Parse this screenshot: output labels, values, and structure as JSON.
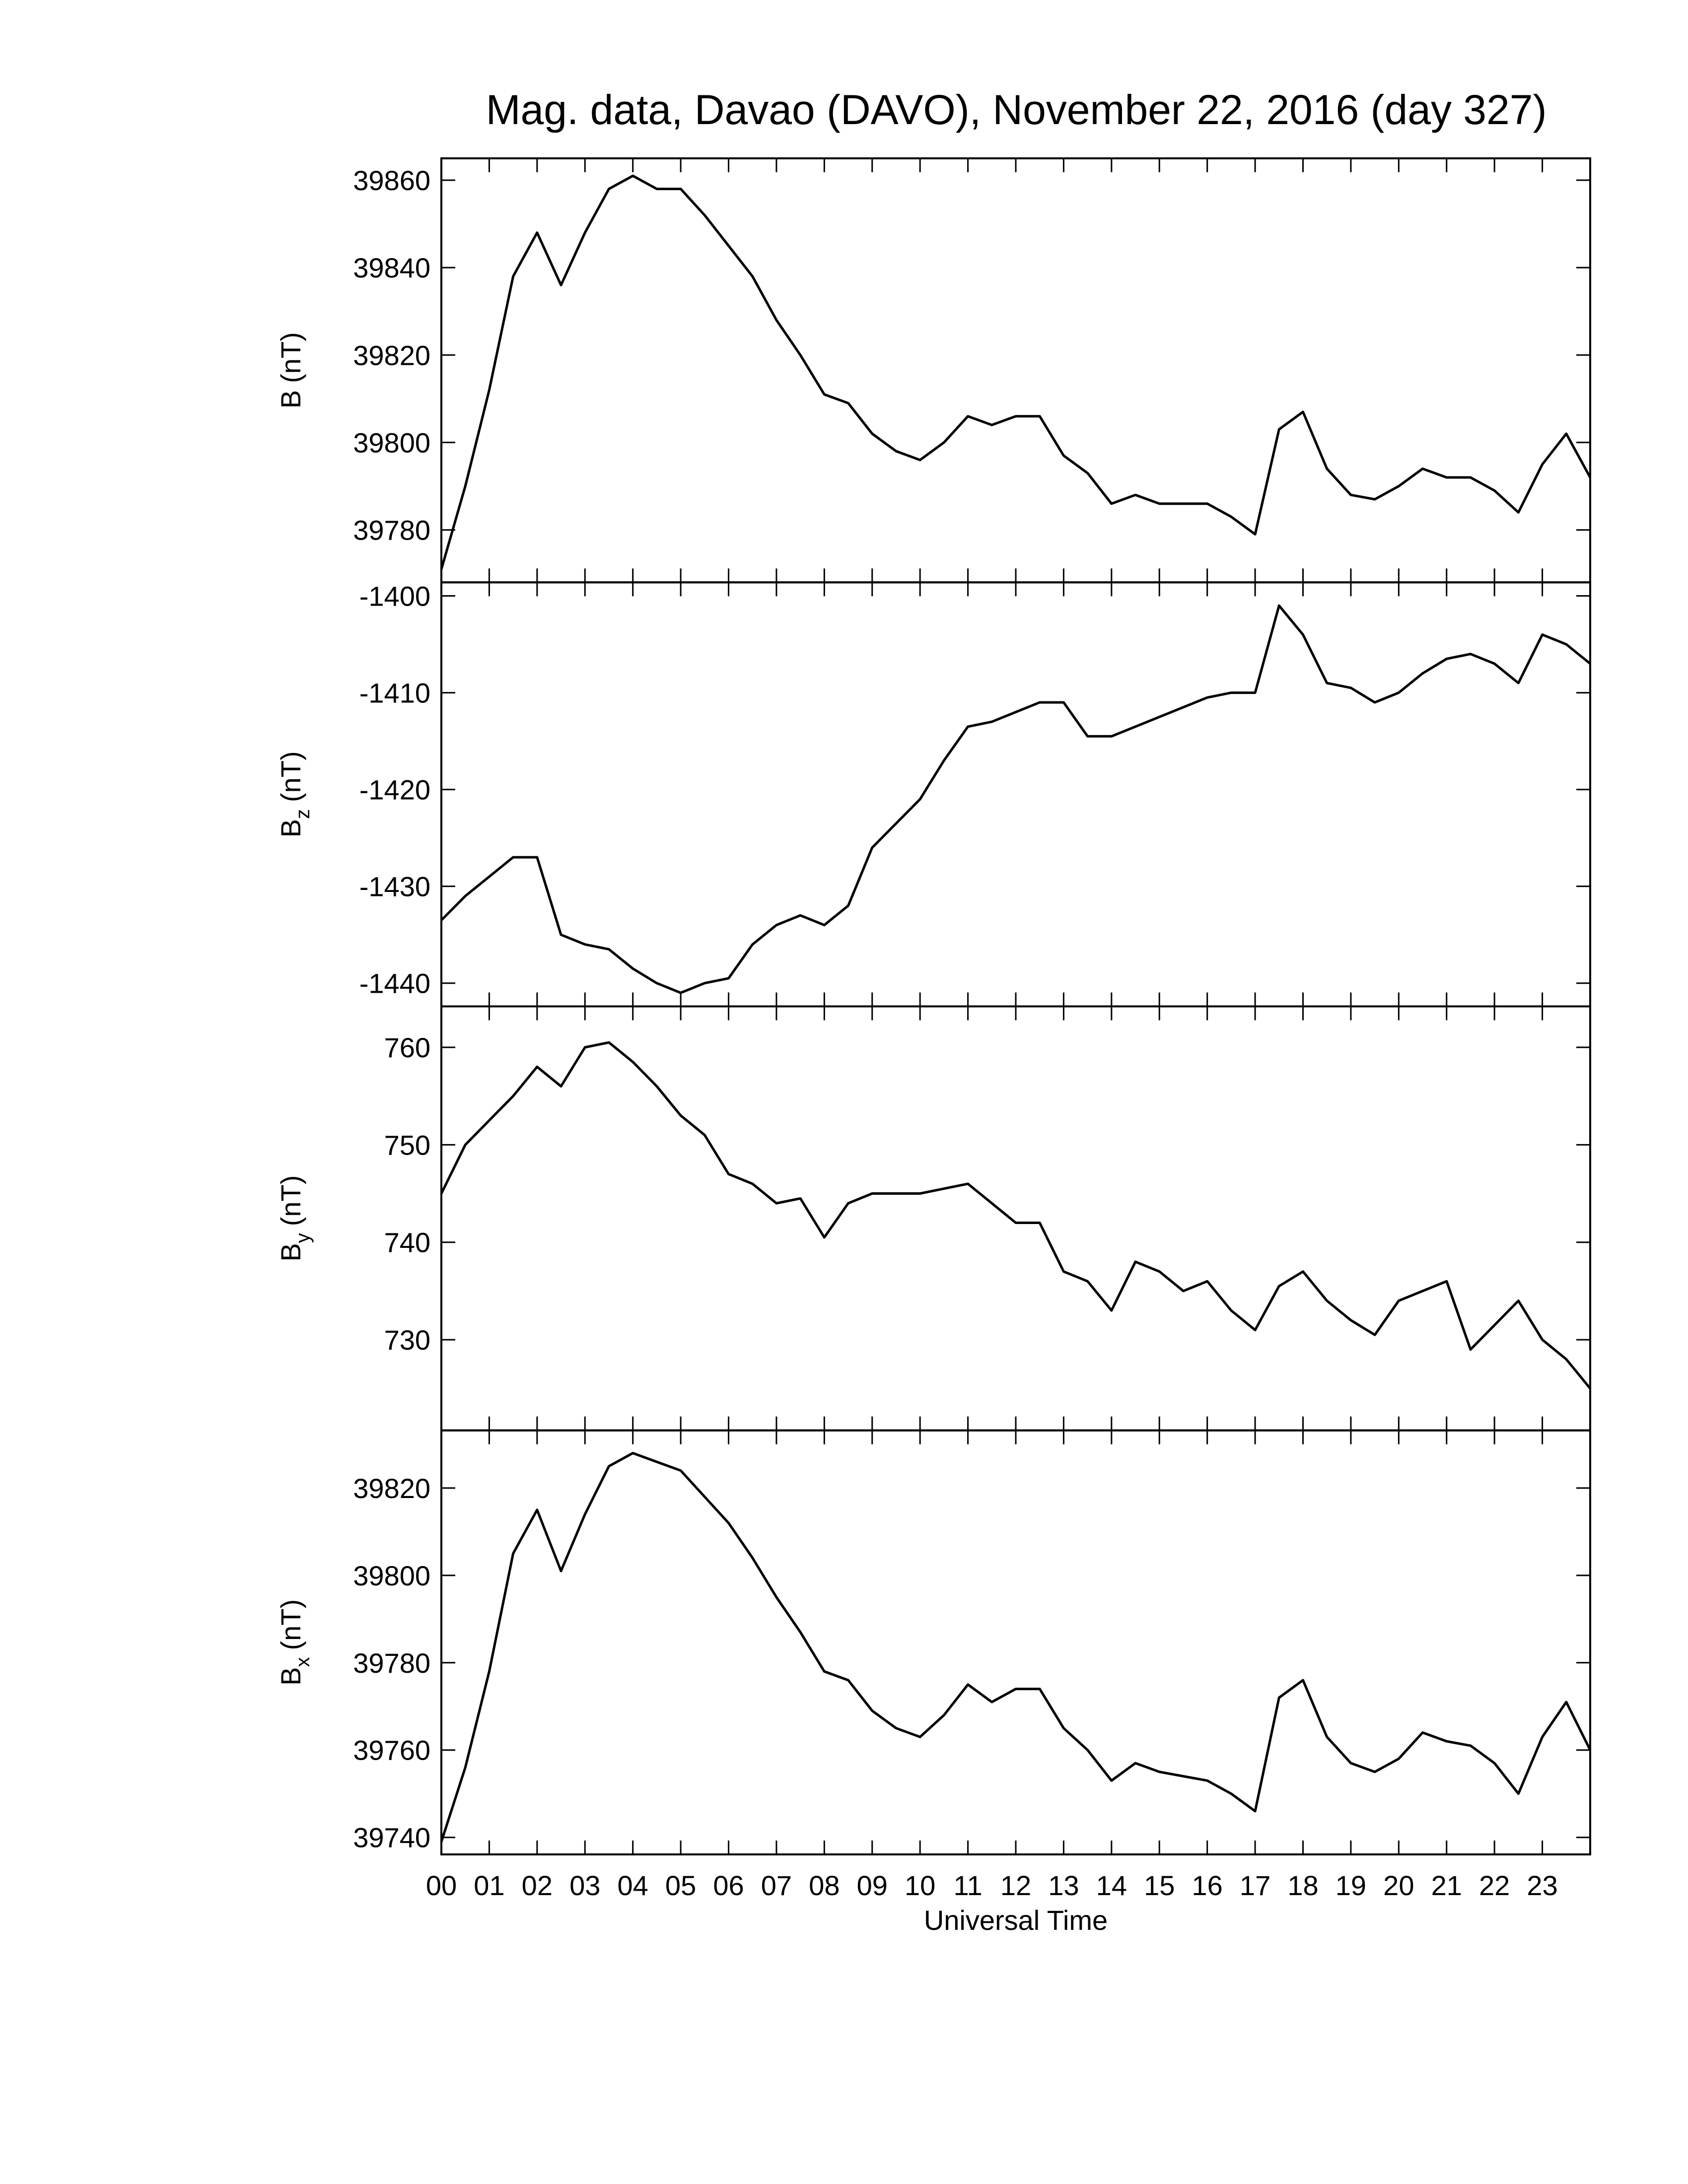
{
  "chart_data": [
    {
      "type": "line",
      "title": "Mag. data, Davao (DAVO), November 22, 2016 (day 327)",
      "ylabel": {
        "symbol": "B",
        "unit": "(nT)"
      },
      "color": "#000000",
      "xlim": [
        0,
        24
      ],
      "ylim": [
        39768,
        39865
      ],
      "yticks": [
        39780,
        39800,
        39820,
        39840,
        39860
      ],
      "x": [
        0,
        0.5,
        1,
        1.5,
        2,
        2.5,
        3,
        3.5,
        4,
        4.5,
        5,
        5.5,
        6,
        6.5,
        7,
        7.5,
        8,
        8.5,
        9,
        9.5,
        10,
        10.5,
        11,
        11.5,
        12,
        12.5,
        13,
        13.5,
        14,
        14.5,
        15,
        15.5,
        16,
        16.5,
        17,
        17.5,
        18,
        18.5,
        19,
        19.5,
        20,
        20.5,
        21,
        21.5,
        22,
        22.5,
        23,
        23.5,
        24
      ],
      "values": [
        39771,
        39790,
        39812,
        39838,
        39848,
        39836,
        39848,
        39858,
        39861,
        39858,
        39858,
        39852,
        39845,
        39838,
        39828,
        39820,
        39811,
        39809,
        39802,
        39798,
        39796,
        39800,
        39806,
        39804,
        39806,
        39806,
        39797,
        39793,
        39786,
        39788,
        39786,
        39786,
        39786,
        39783,
        39779,
        39803,
        39807,
        39794,
        39788,
        39787,
        39790,
        39794,
        39792,
        39792,
        39789,
        39784,
        39795,
        39802,
        39792
      ]
    },
    {
      "type": "line",
      "ylabel": {
        "symbol": "B",
        "subscript": "z",
        "unit": "(nT)"
      },
      "color": "#000000",
      "xlim": [
        0,
        24
      ],
      "ylim": [
        -1442.4,
        -1398.6
      ],
      "yticks": [
        -1440,
        -1430,
        -1420,
        -1410,
        -1400
      ],
      "x": [
        0,
        0.5,
        1,
        1.5,
        2,
        2.5,
        3,
        3.5,
        4,
        4.5,
        5,
        5.5,
        6,
        6.5,
        7,
        7.5,
        8,
        8.5,
        9,
        9.5,
        10,
        10.5,
        11,
        11.5,
        12,
        12.5,
        13,
        13.5,
        14,
        14.5,
        15,
        15.5,
        16,
        16.5,
        17,
        17.5,
        18,
        18.5,
        19,
        19.5,
        20,
        20.5,
        21,
        21.5,
        22,
        22.5,
        23,
        23.5,
        24
      ],
      "values": [
        -1433.5,
        -1431,
        -1429,
        -1427,
        -1427,
        -1435,
        -1436,
        -1436.5,
        -1438.5,
        -1440,
        -1441,
        -1440,
        -1439.5,
        -1436,
        -1434,
        -1433,
        -1434,
        -1432,
        -1426,
        -1423.5,
        -1421,
        -1417,
        -1413.5,
        -1413,
        -1412,
        -1411,
        -1411,
        -1414.5,
        -1414.5,
        -1413.5,
        -1412.5,
        -1411.5,
        -1410.5,
        -1410,
        -1410,
        -1401,
        -1404,
        -1409,
        -1409.5,
        -1411,
        -1410,
        -1408,
        -1406.5,
        -1406,
        -1407,
        -1409,
        -1404,
        -1405,
        -1407
      ]
    },
    {
      "type": "line",
      "ylabel": {
        "symbol": "B",
        "subscript": "y",
        "unit": "(nT)"
      },
      "color": "#000000",
      "xlim": [
        0,
        24
      ],
      "ylim": [
        720.7,
        764.2
      ],
      "yticks": [
        730,
        740,
        750,
        760
      ],
      "x": [
        0,
        0.5,
        1,
        1.5,
        2,
        2.5,
        3,
        3.5,
        4,
        4.5,
        5,
        5.5,
        6,
        6.5,
        7,
        7.5,
        8,
        8.5,
        9,
        9.5,
        10,
        10.5,
        11,
        11.5,
        12,
        12.5,
        13,
        13.5,
        14,
        14.5,
        15,
        15.5,
        16,
        16.5,
        17,
        17.5,
        18,
        18.5,
        19,
        19.5,
        20,
        20.5,
        21,
        21.5,
        22,
        22.5,
        23,
        23.5,
        24
      ],
      "values": [
        745,
        750,
        752.5,
        755,
        758,
        756,
        760,
        760.5,
        758.5,
        756,
        753,
        751,
        747,
        746,
        744,
        744.5,
        740.5,
        744,
        745,
        745,
        745,
        745.5,
        746,
        744,
        742,
        742,
        737,
        736,
        733,
        738,
        737,
        735,
        736,
        733,
        731,
        735.5,
        737,
        734,
        732,
        730.5,
        734,
        735,
        736,
        729,
        731.5,
        734,
        730,
        728,
        725
      ]
    },
    {
      "type": "line",
      "ylabel": {
        "symbol": "B",
        "subscript": "x",
        "unit": "(nT)"
      },
      "color": "#000000",
      "xlabel": "Universal Time",
      "xlim": [
        0,
        24
      ],
      "ylim": [
        39736.1,
        39833.2
      ],
      "yticks": [
        39740,
        39760,
        39780,
        39800,
        39820
      ],
      "xticks": [
        {
          "value": 0,
          "label": "00"
        },
        {
          "value": 1,
          "label": "01"
        },
        {
          "value": 2,
          "label": "02"
        },
        {
          "value": 3,
          "label": "03"
        },
        {
          "value": 4,
          "label": "04"
        },
        {
          "value": 5,
          "label": "05"
        },
        {
          "value": 6,
          "label": "06"
        },
        {
          "value": 7,
          "label": "07"
        },
        {
          "value": 8,
          "label": "08"
        },
        {
          "value": 9,
          "label": "09"
        },
        10,
        11,
        12,
        13,
        14,
        15,
        16,
        17,
        18,
        19,
        20,
        21,
        22,
        23
      ],
      "x": [
        0,
        0.5,
        1,
        1.5,
        2,
        2.5,
        3,
        3.5,
        4,
        4.5,
        5,
        5.5,
        6,
        6.5,
        7,
        7.5,
        8,
        8.5,
        9,
        9.5,
        10,
        10.5,
        11,
        11.5,
        12,
        12.5,
        13,
        13.5,
        14,
        14.5,
        15,
        15.5,
        16,
        16.5,
        17,
        17.5,
        18,
        18.5,
        19,
        19.5,
        20,
        20.5,
        21,
        21.5,
        22,
        22.5,
        23,
        23.5,
        24
      ],
      "values": [
        39739,
        39756,
        39778,
        39805,
        39815,
        39801,
        39814,
        39825,
        39828,
        39826,
        39824,
        39818,
        39812,
        39804,
        39795,
        39787,
        39778,
        39776,
        39769,
        39765,
        39763,
        39768,
        39775,
        39771,
        39774,
        39774,
        39765,
        39760,
        39753,
        39757,
        39755,
        39754,
        39753,
        39750,
        39746,
        39772,
        39776,
        39763,
        39757,
        39755,
        39758,
        39764,
        39762,
        39761,
        39757,
        39750,
        39763,
        39771,
        39760
      ]
    }
  ]
}
